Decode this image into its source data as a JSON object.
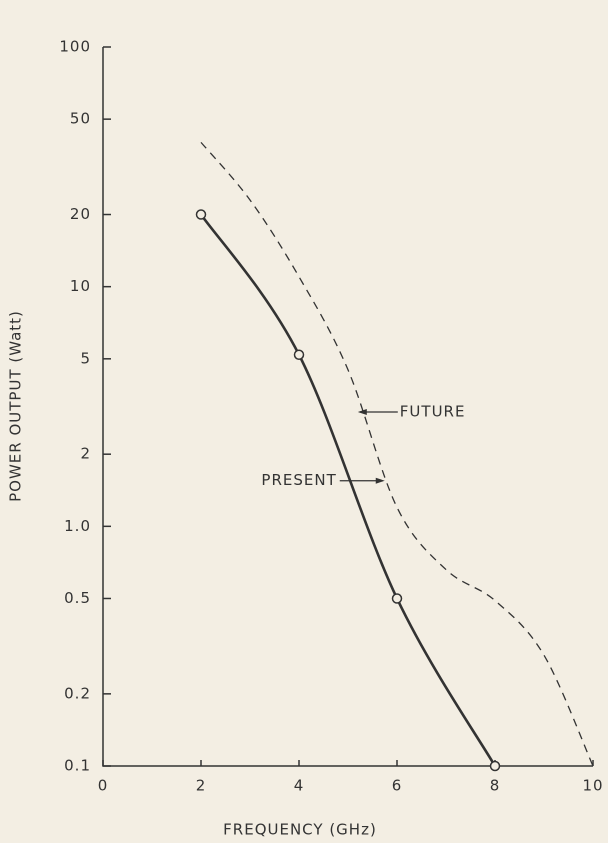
{
  "chart_data": {
    "type": "line",
    "xlabel": "FREQUENCY (GHz)",
    "ylabel": "POWER OUTPUT (Watt)",
    "yscale": "log",
    "xlim": [
      0,
      10
    ],
    "xticks": [
      0,
      2,
      4,
      6,
      8,
      10
    ],
    "ylim": [
      0.1,
      100
    ],
    "yticks": [
      0.1,
      0.2,
      0.5,
      {
        "value": 1,
        "label": "1.0"
      },
      2,
      5,
      10,
      20,
      50,
      100
    ],
    "series": [
      {
        "name": "PRESENT",
        "color": "#333333",
        "style": "solid",
        "marker": "circle",
        "x": [
          2,
          4,
          6,
          8
        ],
        "values": [
          20,
          5.2,
          0.5,
          0.1
        ]
      },
      {
        "name": "FUTURE",
        "color": "#333333",
        "style": "dashed",
        "x": [
          2,
          3,
          4,
          5,
          6,
          7,
          8,
          9,
          10
        ],
        "values": [
          40,
          23,
          11,
          4.5,
          1.2,
          0.66,
          0.49,
          0.29,
          0.1
        ]
      }
    ],
    "annotations": [
      {
        "text": "PRESENT",
        "x": 5.75,
        "y": 1.55,
        "series": 0
      },
      {
        "text": "FUTURE",
        "x": 5.2,
        "y": 3.0,
        "series": 1
      }
    ]
  }
}
